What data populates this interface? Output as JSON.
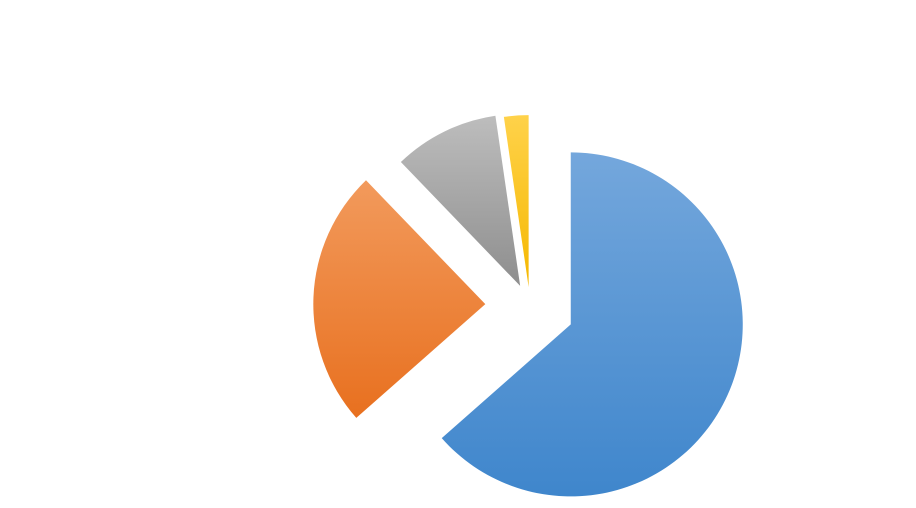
{
  "chart_data": {
    "type": "pie",
    "exploded": true,
    "start_angle_deg": 0,
    "direction": "clockwise",
    "gradient_fill": true,
    "legend": "none",
    "slices": [
      {
        "value": 63.5,
        "color_top": "#74a7dc",
        "color_bottom": "#3f86cc"
      },
      {
        "value": 24.3,
        "color_top": "#f29a5c",
        "color_bottom": "#e8701f"
      },
      {
        "value": 9.9,
        "color_top": "#bdbdbd",
        "color_bottom": "#8e8e8e"
      },
      {
        "value": 2.3,
        "color_top": "#ffd24a",
        "color_bottom": "#f5b800"
      }
    ]
  }
}
